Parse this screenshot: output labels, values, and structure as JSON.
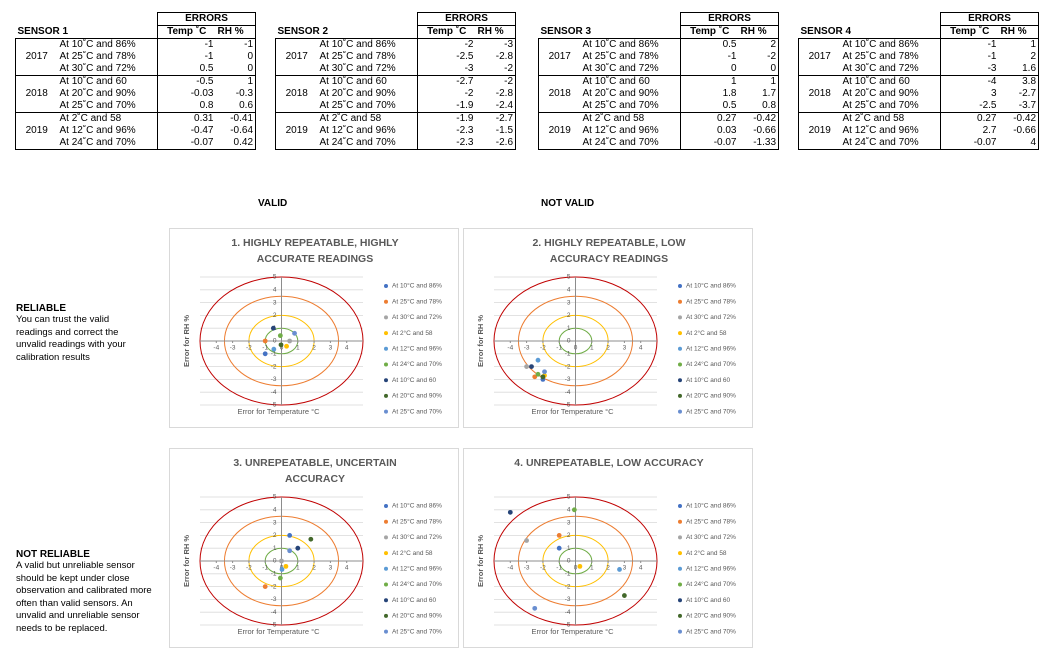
{
  "tables": [
    {
      "title": "SENSOR 1",
      "header": "ERRORS",
      "columns": [
        "Temp ˚C",
        "RH %"
      ],
      "groups": [
        {
          "year": "2017",
          "rows": [
            {
              "label": "At 10˚C and 86%",
              "temp": -1,
              "rh": -1
            },
            {
              "label": "At 25˚C and 78%",
              "temp": -1,
              "rh": 0
            },
            {
              "label": "At 30˚C and 72%",
              "temp": 0.5,
              "rh": 0
            }
          ]
        },
        {
          "year": "2018",
          "rows": [
            {
              "label": "At 10˚C and 60",
              "temp": -0.5,
              "rh": 1
            },
            {
              "label": "At 20˚C and 90%",
              "temp": -0.03,
              "rh": -0.3
            },
            {
              "label": "At 25˚C and 70%",
              "temp": 0.8,
              "rh": 0.6
            }
          ]
        },
        {
          "year": "2019",
          "rows": [
            {
              "label": "At 2˚C and 58",
              "temp": 0.31,
              "rh": -0.41
            },
            {
              "label": "At 12˚C and 96%",
              "temp": -0.47,
              "rh": -0.64
            },
            {
              "label": "At 24˚C and 70%",
              "temp": -0.07,
              "rh": 0.42
            }
          ]
        }
      ]
    },
    {
      "title": "SENSOR 2",
      "header": "ERRORS",
      "columns": [
        "Temp ˚C",
        "RH %"
      ],
      "groups": [
        {
          "year": "2017",
          "rows": [
            {
              "label": "At 10˚C and 86%",
              "temp": -2,
              "rh": -3
            },
            {
              "label": "At 25˚C and 78%",
              "temp": -2.5,
              "rh": -2.8
            },
            {
              "label": "At 30˚C and 72%",
              "temp": -3,
              "rh": -2
            }
          ]
        },
        {
          "year": "2018",
          "rows": [
            {
              "label": "At 10˚C and 60",
              "temp": -2.7,
              "rh": -2
            },
            {
              "label": "At 20˚C and 90%",
              "temp": -2,
              "rh": -2.8
            },
            {
              "label": "At 25˚C and 70%",
              "temp": -1.9,
              "rh": -2.4
            }
          ]
        },
        {
          "year": "2019",
          "rows": [
            {
              "label": "At 2˚C and 58",
              "temp": -1.9,
              "rh": -2.7
            },
            {
              "label": "At 12˚C and 96%",
              "temp": -2.3,
              "rh": -1.5
            },
            {
              "label": "At 24˚C and 70%",
              "temp": -2.3,
              "rh": -2.6
            }
          ]
        }
      ]
    },
    {
      "title": "SENSOR 3",
      "header": "ERRORS",
      "columns": [
        "Temp ˚C",
        "RH %"
      ],
      "groups": [
        {
          "year": "2017",
          "rows": [
            {
              "label": "At 10˚C and 86%",
              "temp": 0.5,
              "rh": 2
            },
            {
              "label": "At 25˚C and 78%",
              "temp": -1,
              "rh": -2
            },
            {
              "label": "At 30˚C and 72%",
              "temp": 0,
              "rh": 0
            }
          ]
        },
        {
          "year": "2018",
          "rows": [
            {
              "label": "At 10˚C and 60",
              "temp": 1,
              "rh": 1
            },
            {
              "label": "At 20˚C and 90%",
              "temp": 1.8,
              "rh": 1.7
            },
            {
              "label": "At 25˚C and 70%",
              "temp": 0.5,
              "rh": 0.8
            }
          ]
        },
        {
          "year": "2019",
          "rows": [
            {
              "label": "At 2˚C and 58",
              "temp": 0.27,
              "rh": -0.42
            },
            {
              "label": "At 12˚C and 96%",
              "temp": 0.03,
              "rh": -0.66
            },
            {
              "label": "At 24˚C and 70%",
              "temp": -0.07,
              "rh": -1.33
            }
          ]
        }
      ]
    },
    {
      "title": "SENSOR 4",
      "header": "ERRORS",
      "columns": [
        "Temp ˚C",
        "RH %"
      ],
      "groups": [
        {
          "year": "2017",
          "rows": [
            {
              "label": "At 10˚C and 86%",
              "temp": -1,
              "rh": 1
            },
            {
              "label": "At 25˚C and 78%",
              "temp": -1,
              "rh": 2
            },
            {
              "label": "At 30˚C and 72%",
              "temp": -3,
              "rh": 1.6
            }
          ]
        },
        {
          "year": "2018",
          "rows": [
            {
              "label": "At 10˚C and 60",
              "temp": -4,
              "rh": 3.8
            },
            {
              "label": "At 20˚C and 90%",
              "temp": 3,
              "rh": -2.7
            },
            {
              "label": "At 25˚C and 70%",
              "temp": -2.5,
              "rh": -3.7
            }
          ]
        },
        {
          "year": "2019",
          "rows": [
            {
              "label": "At 2˚C and 58",
              "temp": 0.27,
              "rh": -0.42
            },
            {
              "label": "At 12˚C and 96%",
              "temp": 2.7,
              "rh": -0.66
            },
            {
              "label": "At 24˚C and 70%",
              "temp": -0.07,
              "rh": 4
            }
          ]
        }
      ]
    }
  ],
  "columns_heads": {
    "valid": "VALID",
    "not_valid": "NOT VALID"
  },
  "notes": [
    {
      "title": "RELIABLE",
      "text": "You can trust the valid readings and correct the unvalid readings with your calibration results"
    },
    {
      "title": "NOT RELIABLE",
      "text": "A valid but unreliable sensor should be kept under close observation and calibrated more often than valid sensors. An unvalid and unreliable sensor needs to be replaced."
    }
  ],
  "chart_data": [
    {
      "type": "scatter",
      "title": "1. HIGHLY REPEATABLE, HIGHLY ACCURATE READINGS",
      "x_label": "Error for Temperature °C",
      "y_label": "Error for RH %",
      "xlim": [
        -5,
        5
      ],
      "ylim": [
        -5,
        5
      ],
      "xticks": [
        -4,
        -3,
        -2,
        -1,
        0,
        1,
        2,
        3,
        4
      ],
      "yticks": [
        -5,
        -4,
        -3,
        -2,
        -1,
        0,
        1,
        2,
        3,
        4,
        5
      ],
      "grid": true,
      "rings": [
        {
          "r": 1,
          "color": "#70ad47"
        },
        {
          "r": 2,
          "color": "#ffc000"
        },
        {
          "r": 3.5,
          "color": "#ed7d31"
        },
        {
          "r": 5,
          "color": "#c00000"
        }
      ],
      "series": [
        {
          "name": "At 10°C and 86%",
          "color": "#4472c4",
          "x": [
            -1
          ],
          "values": [
            -1
          ]
        },
        {
          "name": "At 25°C and 78%",
          "color": "#ed7d31",
          "x": [
            -1
          ],
          "values": [
            0
          ]
        },
        {
          "name": "At 30°C and 72%",
          "color": "#a5a5a5",
          "x": [
            0.5
          ],
          "values": [
            0
          ]
        },
        {
          "name": "At 2°C and  58",
          "color": "#ffc000",
          "x": [
            0.31
          ],
          "values": [
            -0.41
          ]
        },
        {
          "name": "At 12°C and 96%",
          "color": "#5b9bd5",
          "x": [
            -0.47
          ],
          "values": [
            -0.64
          ]
        },
        {
          "name": "At 24°C and 70%",
          "color": "#70ad47",
          "x": [
            -0.07
          ],
          "values": [
            0.42
          ]
        },
        {
          "name": "At 10°C and 60",
          "color": "#264478",
          "x": [
            -0.5
          ],
          "values": [
            1
          ]
        },
        {
          "name": "At 20°C and 90%",
          "color": "#43682b",
          "x": [
            -0.03
          ],
          "values": [
            -0.3
          ]
        },
        {
          "name": "At 25°C and 70%",
          "color": "#698ed0",
          "x": [
            0.8
          ],
          "values": [
            0.6
          ]
        }
      ]
    },
    {
      "type": "scatter",
      "title": "2. HIGHLY REPEATABLE, LOW ACCURACY READINGS",
      "x_label": "Error for Temperature °C",
      "y_label": "Error for RH %",
      "xlim": [
        -5,
        5
      ],
      "ylim": [
        -5,
        5
      ],
      "xticks": [
        -4,
        -3,
        -2,
        -1,
        0,
        1,
        2,
        3,
        4
      ],
      "yticks": [
        -5,
        -4,
        -3,
        -2,
        -1,
        0,
        1,
        2,
        3,
        4,
        5
      ],
      "grid": true,
      "rings": [
        {
          "r": 1,
          "color": "#70ad47"
        },
        {
          "r": 2,
          "color": "#ffc000"
        },
        {
          "r": 3.5,
          "color": "#ed7d31"
        },
        {
          "r": 5,
          "color": "#c00000"
        }
      ],
      "series": [
        {
          "name": "At 10°C and 86%",
          "color": "#4472c4",
          "x": [
            -2
          ],
          "values": [
            -3
          ]
        },
        {
          "name": "At 25°C and 78%",
          "color": "#ed7d31",
          "x": [
            -2.5
          ],
          "values": [
            -2.8
          ]
        },
        {
          "name": "At 30°C and 72%",
          "color": "#a5a5a5",
          "x": [
            -3
          ],
          "values": [
            -2
          ]
        },
        {
          "name": "At 2°C and  58",
          "color": "#ffc000",
          "x": [
            -1.9
          ],
          "values": [
            -2.7
          ]
        },
        {
          "name": "At 12°C and 96%",
          "color": "#5b9bd5",
          "x": [
            -2.3
          ],
          "values": [
            -1.5
          ]
        },
        {
          "name": "At 24°C and 70%",
          "color": "#70ad47",
          "x": [
            -2.3
          ],
          "values": [
            -2.6
          ]
        },
        {
          "name": "At 10°C and 60",
          "color": "#264478",
          "x": [
            -2.7
          ],
          "values": [
            -2
          ]
        },
        {
          "name": "At 20°C and 90%",
          "color": "#43682b",
          "x": [
            -2
          ],
          "values": [
            -2.8
          ]
        },
        {
          "name": "At 25°C and 70%",
          "color": "#698ed0",
          "x": [
            -1.9
          ],
          "values": [
            -2.4
          ]
        }
      ]
    },
    {
      "type": "scatter",
      "title": "3. UNREPEATABLE, UNCERTAIN ACCURACY",
      "x_label": "Error for Temperature °C",
      "y_label": "Error for RH %",
      "xlim": [
        -5,
        5
      ],
      "ylim": [
        -5,
        5
      ],
      "xticks": [
        -4,
        -3,
        -2,
        -1,
        0,
        1,
        2,
        3,
        4
      ],
      "yticks": [
        -5,
        -4,
        -3,
        -2,
        -1,
        0,
        1,
        2,
        3,
        4,
        5
      ],
      "grid": true,
      "rings": [
        {
          "r": 1,
          "color": "#70ad47"
        },
        {
          "r": 2,
          "color": "#ffc000"
        },
        {
          "r": 3.5,
          "color": "#ed7d31"
        },
        {
          "r": 5,
          "color": "#c00000"
        }
      ],
      "series": [
        {
          "name": "At 10°C and 86%",
          "color": "#4472c4",
          "x": [
            0.5
          ],
          "values": [
            2
          ]
        },
        {
          "name": "At 25°C and 78%",
          "color": "#ed7d31",
          "x": [
            -1
          ],
          "values": [
            -2
          ]
        },
        {
          "name": "At 30°C and 72%",
          "color": "#a5a5a5",
          "x": [
            0
          ],
          "values": [
            0
          ]
        },
        {
          "name": "At 2°C and  58",
          "color": "#ffc000",
          "x": [
            0.27
          ],
          "values": [
            -0.42
          ]
        },
        {
          "name": "At 12°C and 96%",
          "color": "#5b9bd5",
          "x": [
            0.03
          ],
          "values": [
            -0.66
          ]
        },
        {
          "name": "At 24°C and 70%",
          "color": "#70ad47",
          "x": [
            -0.07
          ],
          "values": [
            -1.33
          ]
        },
        {
          "name": "At 10°C and 60",
          "color": "#264478",
          "x": [
            1
          ],
          "values": [
            1
          ]
        },
        {
          "name": "At 20°C and 90%",
          "color": "#43682b",
          "x": [
            1.8
          ],
          "values": [
            1.7
          ]
        },
        {
          "name": "At 25°C and 70%",
          "color": "#698ed0",
          "x": [
            0.5
          ],
          "values": [
            0.8
          ]
        }
      ]
    },
    {
      "type": "scatter",
      "title": "4. UNREPEATABLE, LOW ACCURACY",
      "x_label": "Error for Temperature °C",
      "y_label": "Error for RH %",
      "xlim": [
        -5,
        5
      ],
      "ylim": [
        -5,
        5
      ],
      "xticks": [
        -4,
        -3,
        -2,
        -1,
        0,
        1,
        2,
        3,
        4
      ],
      "yticks": [
        -5,
        -4,
        -3,
        -2,
        -1,
        0,
        1,
        2,
        3,
        4,
        5
      ],
      "grid": true,
      "rings": [
        {
          "r": 1,
          "color": "#70ad47"
        },
        {
          "r": 2,
          "color": "#ffc000"
        },
        {
          "r": 3.5,
          "color": "#ed7d31"
        },
        {
          "r": 5,
          "color": "#c00000"
        }
      ],
      "series": [
        {
          "name": "At 10°C and 86%",
          "color": "#4472c4",
          "x": [
            -1
          ],
          "values": [
            1
          ]
        },
        {
          "name": "At 25°C and 78%",
          "color": "#ed7d31",
          "x": [
            -1
          ],
          "values": [
            2
          ]
        },
        {
          "name": "At 30°C and 72%",
          "color": "#a5a5a5",
          "x": [
            -3
          ],
          "values": [
            1.6
          ]
        },
        {
          "name": "At 2°C and  58",
          "color": "#ffc000",
          "x": [
            0.27
          ],
          "values": [
            -0.42
          ]
        },
        {
          "name": "At 12°C and 96%",
          "color": "#5b9bd5",
          "x": [
            2.7
          ],
          "values": [
            -0.66
          ]
        },
        {
          "name": "At 24°C and 70%",
          "color": "#70ad47",
          "x": [
            -0.07
          ],
          "values": [
            4
          ]
        },
        {
          "name": "At 10°C and 60",
          "color": "#264478",
          "x": [
            -4
          ],
          "values": [
            3.8
          ]
        },
        {
          "name": "At 20°C and 90%",
          "color": "#43682b",
          "x": [
            3
          ],
          "values": [
            -2.7
          ]
        },
        {
          "name": "At 25°C and 70%",
          "color": "#698ed0",
          "x": [
            -2.5
          ],
          "values": [
            -3.7
          ]
        }
      ]
    }
  ]
}
